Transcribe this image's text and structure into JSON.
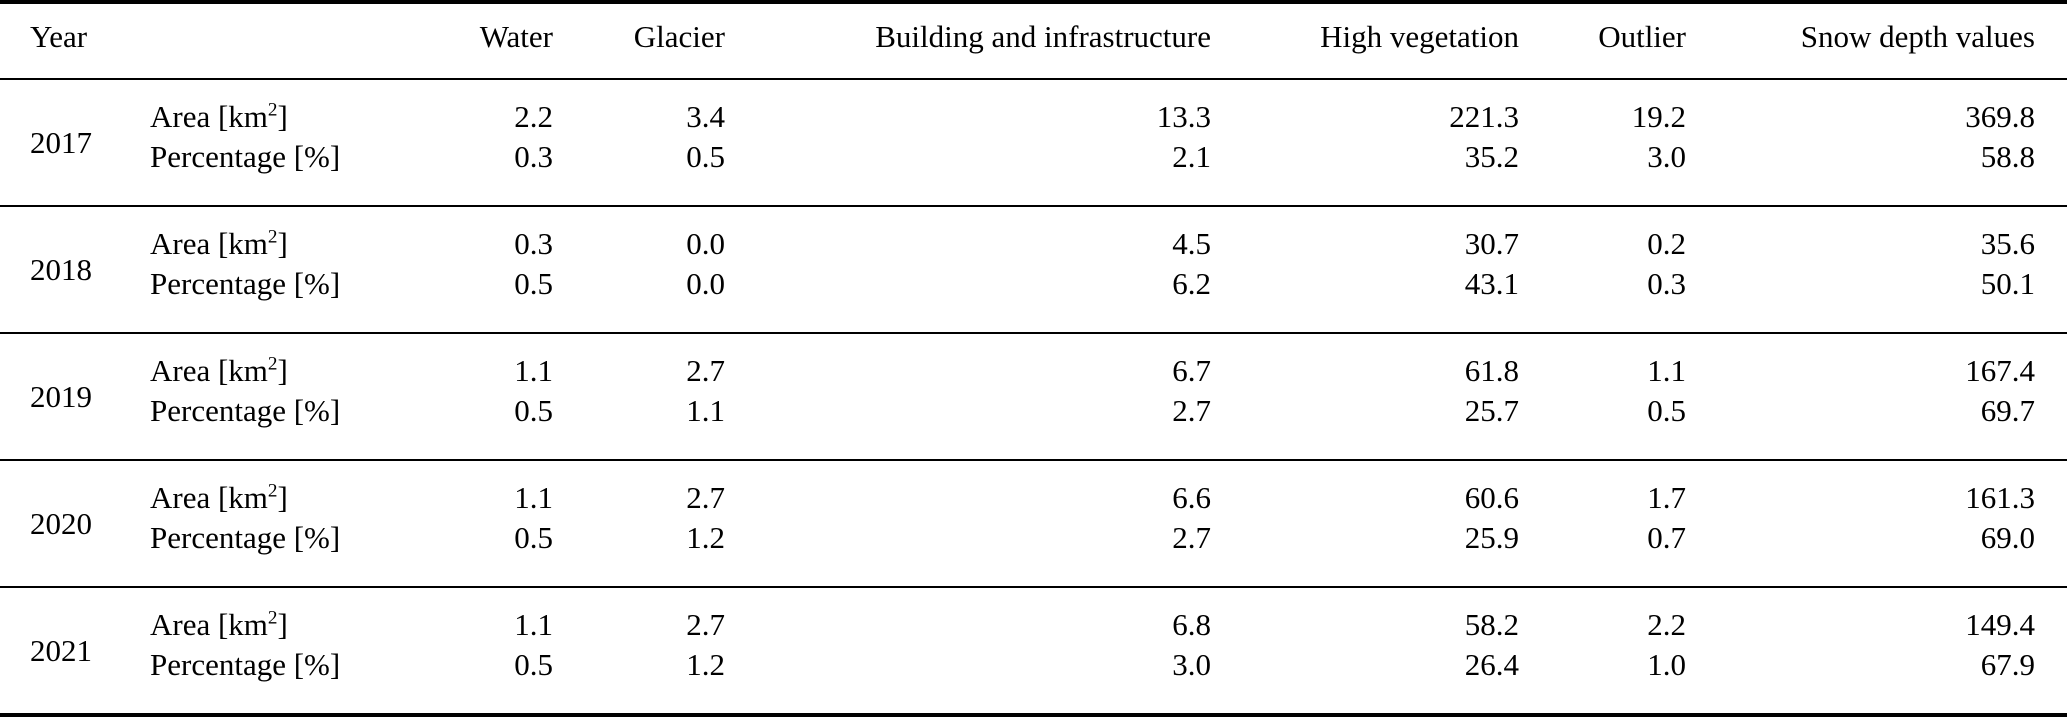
{
  "meta": {
    "background_color": "#ffffff",
    "text_color": "#000000",
    "rule_color": "#000000"
  },
  "table": {
    "header": {
      "year": "Year",
      "row_label": "",
      "columns": [
        "Water",
        "Glacier",
        "Building and infrastructure",
        "High vegetation",
        "Outlier",
        "Snow depth values"
      ]
    },
    "row_labels": {
      "area_prefix": "Area [km",
      "area_sup": "2",
      "area_suffix": "]",
      "percentage": "Percentage [%]"
    },
    "groups": [
      {
        "year": "2017",
        "area": [
          "2.2",
          "3.4",
          "13.3",
          "221.3",
          "19.2",
          "369.8"
        ],
        "percentage": [
          "0.3",
          "0.5",
          "2.1",
          "35.2",
          "3.0",
          "58.8"
        ]
      },
      {
        "year": "2018",
        "area": [
          "0.3",
          "0.0",
          "4.5",
          "30.7",
          "0.2",
          "35.6"
        ],
        "percentage": [
          "0.5",
          "0.0",
          "6.2",
          "43.1",
          "0.3",
          "50.1"
        ]
      },
      {
        "year": "2019",
        "area": [
          "1.1",
          "2.7",
          "6.7",
          "61.8",
          "1.1",
          "167.4"
        ],
        "percentage": [
          "0.5",
          "1.1",
          "2.7",
          "25.7",
          "0.5",
          "69.7"
        ]
      },
      {
        "year": "2020",
        "area": [
          "1.1",
          "2.7",
          "6.6",
          "60.6",
          "1.7",
          "161.3"
        ],
        "percentage": [
          "0.5",
          "1.2",
          "2.7",
          "25.9",
          "0.7",
          "69.0"
        ]
      },
      {
        "year": "2021",
        "area": [
          "1.1",
          "2.7",
          "6.8",
          "58.2",
          "2.2",
          "149.4"
        ],
        "percentage": [
          "0.5",
          "1.2",
          "3.0",
          "26.4",
          "1.0",
          "67.9"
        ]
      }
    ]
  }
}
